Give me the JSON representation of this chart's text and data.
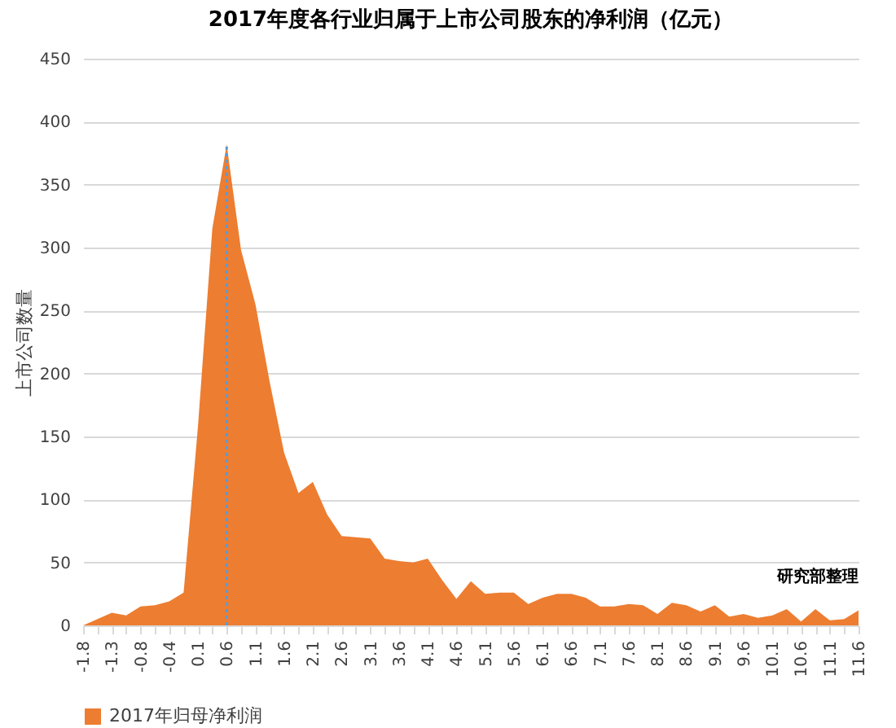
{
  "chart_data": {
    "type": "area",
    "title": "2017年度各行业归属于上市公司股东的净利润（亿元）",
    "ylabel": "上市公司数量",
    "categories": [
      "-1.8",
      null,
      "-1.3",
      null,
      "-0.8",
      null,
      "-0.4",
      null,
      "0.1",
      null,
      "0.6",
      null,
      "1.1",
      null,
      "1.6",
      null,
      "2.1",
      null,
      "2.6",
      null,
      "3.1",
      null,
      "3.6",
      null,
      "4.1",
      null,
      "4.6",
      null,
      "5.1",
      null,
      "5.6",
      null,
      "6.1",
      null,
      "6.6",
      null,
      "7.1",
      null,
      "7.6",
      null,
      "8.1",
      null,
      "8.6",
      null,
      "9.1",
      null,
      "9.6",
      null,
      "10.1",
      null,
      "10.6",
      null,
      "11.1",
      null,
      "11.6"
    ],
    "series": [
      {
        "name": "2017年归母净利润",
        "color": "#ed7d31",
        "values": [
          0,
          5,
          10,
          8,
          15,
          16,
          19,
          26,
          158,
          315,
          382,
          298,
          255,
          193,
          137,
          105,
          114,
          88,
          71,
          70,
          69,
          53,
          51,
          50,
          53,
          36,
          21,
          35,
          25,
          26,
          26,
          17,
          22,
          25,
          25,
          22,
          15,
          15,
          17,
          16,
          9,
          18,
          16,
          11,
          16,
          7,
          9,
          6,
          8,
          13,
          3,
          13,
          4,
          5,
          12
        ]
      }
    ],
    "ylim": [
      0,
      450
    ],
    "yticks": [
      0,
      50,
      100,
      150,
      200,
      250,
      300,
      350,
      400,
      450
    ],
    "grid": "y",
    "legend": "bottom",
    "ref_lines": [
      {
        "axis": "x",
        "value": "0.6",
        "color": "#5b9bd5",
        "line_style": "dotted"
      }
    ],
    "annotations": [
      "研究部整理"
    ]
  }
}
